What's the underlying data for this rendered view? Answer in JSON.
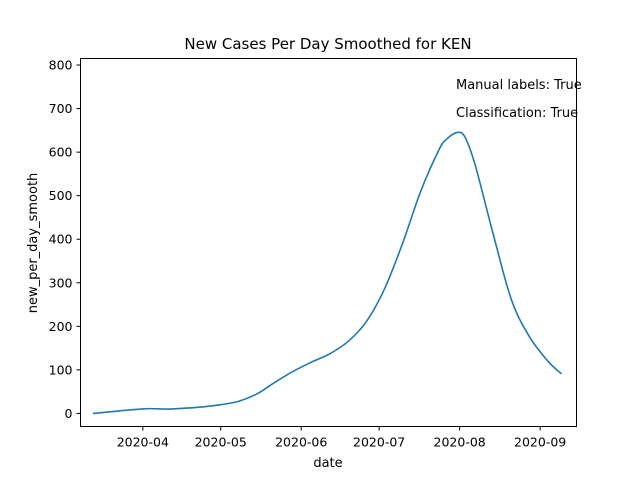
{
  "chart_data": {
    "type": "line",
    "title": "New Cases Per Day Smoothed for KEN",
    "xlabel": "date",
    "ylabel": "new_per_day_smooth",
    "xlim": [
      "2020-03-08",
      "2020-09-15"
    ],
    "ylim": [
      -30,
      815
    ],
    "x_ticks": [
      "2020-04-01",
      "2020-05-01",
      "2020-06-01",
      "2020-07-01",
      "2020-08-01",
      "2020-09-01"
    ],
    "x_tick_labels": [
      "2020-04",
      "2020-05",
      "2020-06",
      "2020-07",
      "2020-08",
      "2020-09"
    ],
    "y_ticks": [
      0,
      100,
      200,
      300,
      400,
      500,
      600,
      700,
      800
    ],
    "y_tick_labels": [
      "0",
      "100",
      "200",
      "300",
      "400",
      "500",
      "600",
      "700",
      "800"
    ],
    "grid": false,
    "legend": "none",
    "annotations": [
      "Manual labels: True",
      "Classification: True"
    ],
    "series": [
      {
        "color": "#1f77b4",
        "x": [
          "2020-03-13",
          "2020-03-20",
          "2020-03-27",
          "2020-04-03",
          "2020-04-10",
          "2020-04-17",
          "2020-04-24",
          "2020-05-01",
          "2020-05-08",
          "2020-05-15",
          "2020-05-22",
          "2020-05-29",
          "2020-06-05",
          "2020-06-12",
          "2020-06-19",
          "2020-06-26",
          "2020-07-03",
          "2020-07-10",
          "2020-07-17",
          "2020-07-24",
          "2020-07-27",
          "2020-07-31",
          "2020-08-03",
          "2020-08-07",
          "2020-08-14",
          "2020-08-21",
          "2020-08-28",
          "2020-09-04",
          "2020-09-09"
        ],
        "y": [
          0,
          4,
          8,
          11,
          10,
          12,
          15,
          20,
          28,
          45,
          72,
          97,
          118,
          137,
          165,
          210,
          285,
          390,
          510,
          605,
          630,
          645,
          635,
          570,
          410,
          260,
          175,
          120,
          92
        ]
      }
    ]
  }
}
